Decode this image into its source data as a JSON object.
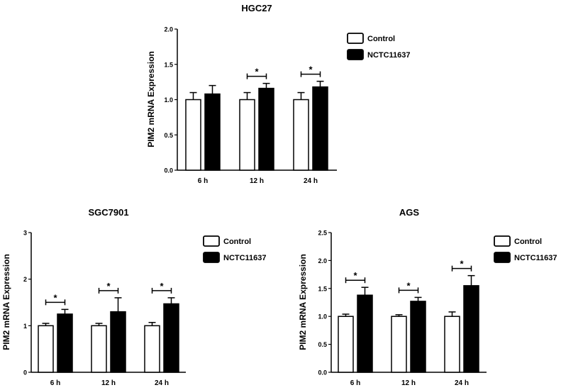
{
  "chart_data": [
    {
      "type": "bar",
      "title": "HGC27",
      "ylabel": "PIM2 mRNA Expression",
      "xlabel": "",
      "categories": [
        "6 h",
        "12 h",
        "24 h"
      ],
      "ylim": [
        0,
        2.0
      ],
      "yticks": [
        "0.0",
        "0.5",
        "1.0",
        "1.5",
        "2.0"
      ],
      "series": [
        {
          "name": "Control",
          "values": [
            1.0,
            1.0,
            1.0
          ],
          "errors": [
            0.1,
            0.1,
            0.1
          ],
          "color": "#ffffff"
        },
        {
          "name": "NCTC11637",
          "values": [
            1.08,
            1.16,
            1.18
          ],
          "errors": [
            0.12,
            0.07,
            0.08
          ],
          "color": "#000000"
        }
      ],
      "significance": [
        "",
        "*",
        "*"
      ],
      "legend_position": "right"
    },
    {
      "type": "bar",
      "title": "SGC7901",
      "ylabel": "PIM2 mRNA Expression",
      "xlabel": "",
      "categories": [
        "6 h",
        "12 h",
        "24 h"
      ],
      "ylim": [
        0,
        3
      ],
      "yticks": [
        "0",
        "1",
        "2",
        "3"
      ],
      "series": [
        {
          "name": "Control",
          "values": [
            1.0,
            1.0,
            1.0
          ],
          "errors": [
            0.05,
            0.05,
            0.07
          ],
          "color": "#ffffff"
        },
        {
          "name": "NCTC11637",
          "values": [
            1.25,
            1.3,
            1.47
          ],
          "errors": [
            0.1,
            0.3,
            0.13
          ],
          "color": "#000000"
        }
      ],
      "significance": [
        "*",
        "*",
        "*"
      ],
      "legend_position": "right"
    },
    {
      "type": "bar",
      "title": "AGS",
      "ylabel": "PIM2 mRNA Expression",
      "xlabel": "",
      "categories": [
        "6 h",
        "12 h",
        "24 h"
      ],
      "ylim": [
        0,
        2.5
      ],
      "yticks": [
        "0.0",
        "0.5",
        "1.0",
        "1.5",
        "2.0",
        "2.5"
      ],
      "series": [
        {
          "name": "Control",
          "values": [
            1.0,
            1.0,
            1.0
          ],
          "errors": [
            0.04,
            0.03,
            0.08
          ],
          "color": "#ffffff"
        },
        {
          "name": "NCTC11637",
          "values": [
            1.38,
            1.27,
            1.55
          ],
          "errors": [
            0.14,
            0.07,
            0.18
          ],
          "color": "#000000"
        }
      ],
      "significance": [
        "*",
        "*",
        "*"
      ],
      "legend_position": "right"
    }
  ]
}
